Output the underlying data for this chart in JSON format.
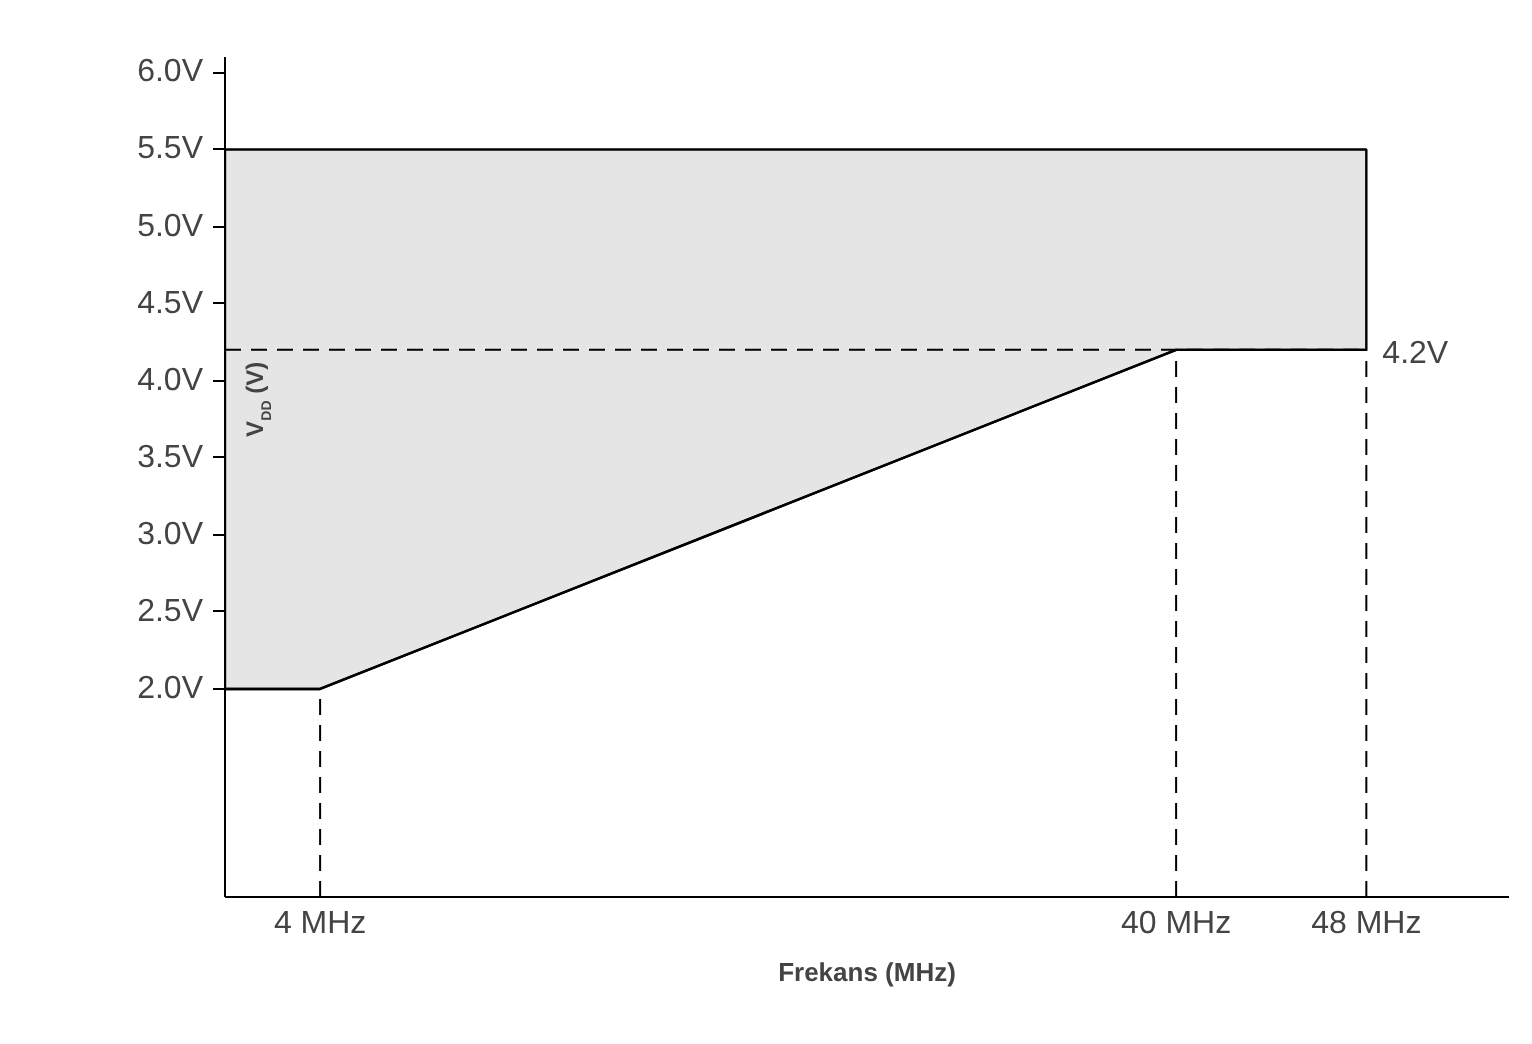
{
  "chart_data": {
    "type": "line",
    "xlabel": "Frekans (MHz)",
    "ylabel": "V$_{DD}$ (V)",
    "x": [
      0,
      4,
      40,
      48
    ],
    "series": [
      {
        "color": "#000000",
        "values": [
          2.0,
          2.0,
          4.2,
          4.2
        ],
        "lower": [
          2.0,
          2.0,
          4.2,
          4.2
        ],
        "upper": [
          5.5,
          5.5,
          5.5,
          5.5
        ]
      }
    ],
    "xlim": [
      0,
      54
    ],
    "ylim": [
      0.65,
      6.1
    ],
    "xticks": [
      {
        "value": 4,
        "label": "4 MHz"
      },
      {
        "value": 40,
        "label": "40 MHz"
      },
      {
        "value": 48,
        "label": "48 MHz"
      }
    ],
    "yticks": [
      {
        "value": 2.0,
        "label": "2.0V"
      },
      {
        "value": 2.5,
        "label": "2.5V"
      },
      {
        "value": 3.0,
        "label": "3.0V"
      },
      {
        "value": 3.5,
        "label": "3.5V"
      },
      {
        "value": 4.0,
        "label": "4.0V"
      },
      {
        "value": 4.5,
        "label": "4.5V"
      },
      {
        "value": 5.0,
        "label": "5.0V"
      },
      {
        "value": 5.5,
        "label": "5.5V"
      },
      {
        "value": 6.0,
        "label": "6.0V"
      }
    ],
    "ref_lines": [
      {
        "axis": "y",
        "value": 4.2,
        "label": "4.2V",
        "line_style": "dashed"
      },
      {
        "axis": "x",
        "value": 4,
        "line_style": "dashed"
      },
      {
        "axis": "x",
        "value": 40,
        "line_style": "dashed"
      },
      {
        "axis": "x",
        "value": 48,
        "line_style": "dashed"
      }
    ],
    "grid": false
  }
}
